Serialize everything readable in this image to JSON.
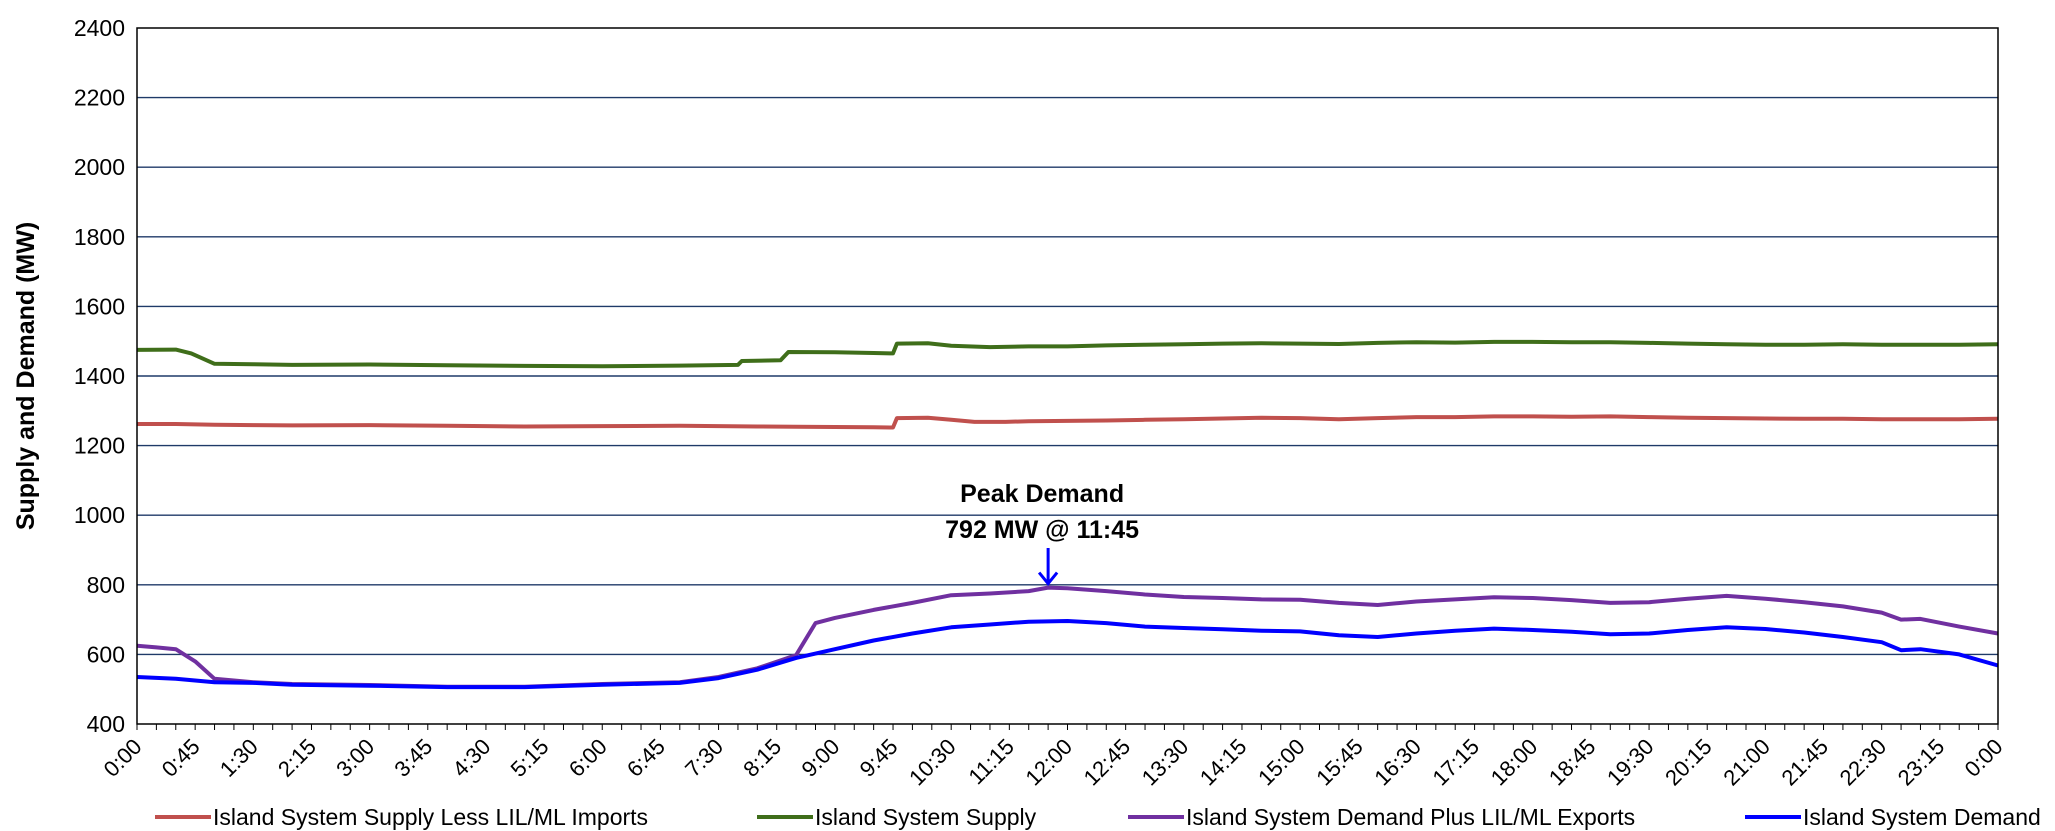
{
  "chart_data": {
    "type": "line",
    "title": "",
    "xlabel": "",
    "ylabel": "Supply and Demand (MW)",
    "ylim": [
      400,
      2400
    ],
    "yticks": [
      400,
      600,
      800,
      1000,
      1200,
      1400,
      1600,
      1800,
      2000,
      2200,
      2400
    ],
    "x_tick_labels": [
      "0:00",
      "0:45",
      "1:30",
      "2:15",
      "3:00",
      "3:45",
      "4:30",
      "5:15",
      "6:00",
      "6:45",
      "7:30",
      "8:15",
      "9:00",
      "9:45",
      "10:30",
      "11:15",
      "12:00",
      "12:45",
      "13:30",
      "14:15",
      "15:00",
      "15:45",
      "16:30",
      "17:15",
      "18:00",
      "18:45",
      "19:30",
      "20:15",
      "21:00",
      "21:45",
      "22:30",
      "23:15",
      "0:00"
    ],
    "x_unit": "hours",
    "grid": true,
    "legend_position": "bottom",
    "annotation": {
      "line1": "Peak Demand",
      "line2": "792 MW @ 11:45",
      "x": 11.75,
      "y": 792,
      "color": "#0000ff"
    },
    "series": [
      {
        "name": "Island System Supply Less LIL/ML Imports",
        "color": "#c0504d",
        "points": [
          [
            0,
            1262
          ],
          [
            0.5,
            1262
          ],
          [
            1,
            1260
          ],
          [
            1.5,
            1259
          ],
          [
            2,
            1258
          ],
          [
            3,
            1259
          ],
          [
            4,
            1257
          ],
          [
            4.5,
            1256
          ],
          [
            5,
            1255
          ],
          [
            6,
            1256
          ],
          [
            7,
            1257
          ],
          [
            8,
            1255
          ],
          [
            8.5,
            1254
          ],
          [
            9.5,
            1253
          ],
          [
            9.75,
            1252
          ],
          [
            9.8,
            1279
          ],
          [
            10.2,
            1280
          ],
          [
            10.5,
            1274
          ],
          [
            10.8,
            1268
          ],
          [
            11.2,
            1268
          ],
          [
            11.5,
            1270
          ],
          [
            12,
            1271
          ],
          [
            12.5,
            1272
          ],
          [
            13,
            1274
          ],
          [
            13.5,
            1276
          ],
          [
            14,
            1278
          ],
          [
            14.5,
            1280
          ],
          [
            15,
            1279
          ],
          [
            15.5,
            1276
          ],
          [
            16,
            1279
          ],
          [
            16.5,
            1282
          ],
          [
            17,
            1282
          ],
          [
            17.5,
            1284
          ],
          [
            18,
            1284
          ],
          [
            18.5,
            1283
          ],
          [
            19,
            1284
          ],
          [
            19.5,
            1282
          ],
          [
            20,
            1280
          ],
          [
            20.5,
            1279
          ],
          [
            21,
            1278
          ],
          [
            21.5,
            1277
          ],
          [
            22,
            1277
          ],
          [
            22.5,
            1276
          ],
          [
            23,
            1276
          ],
          [
            23.5,
            1276
          ],
          [
            24,
            1277
          ]
        ]
      },
      {
        "name": "Island System Supply",
        "color": "#3f6e1a",
        "points": [
          [
            0,
            1475
          ],
          [
            0.5,
            1476
          ],
          [
            0.7,
            1465
          ],
          [
            1,
            1435
          ],
          [
            1.5,
            1434
          ],
          [
            2,
            1432
          ],
          [
            3,
            1433
          ],
          [
            4,
            1431
          ],
          [
            5,
            1429
          ],
          [
            6,
            1428
          ],
          [
            7,
            1430
          ],
          [
            7.75,
            1432
          ],
          [
            7.8,
            1443
          ],
          [
            8.3,
            1445
          ],
          [
            8.4,
            1469
          ],
          [
            9,
            1468
          ],
          [
            9.5,
            1466
          ],
          [
            9.75,
            1465
          ],
          [
            9.8,
            1493
          ],
          [
            10.2,
            1494
          ],
          [
            10.5,
            1487
          ],
          [
            11,
            1483
          ],
          [
            11.5,
            1485
          ],
          [
            12,
            1485
          ],
          [
            12.5,
            1488
          ],
          [
            13,
            1490
          ],
          [
            13.5,
            1491
          ],
          [
            14,
            1493
          ],
          [
            14.5,
            1494
          ],
          [
            15,
            1493
          ],
          [
            15.5,
            1492
          ],
          [
            16,
            1495
          ],
          [
            16.5,
            1497
          ],
          [
            17,
            1496
          ],
          [
            17.5,
            1498
          ],
          [
            18,
            1498
          ],
          [
            18.5,
            1497
          ],
          [
            19,
            1497
          ],
          [
            19.5,
            1495
          ],
          [
            20,
            1493
          ],
          [
            20.5,
            1491
          ],
          [
            21,
            1490
          ],
          [
            21.5,
            1490
          ],
          [
            22,
            1491
          ],
          [
            22.5,
            1490
          ],
          [
            23,
            1490
          ],
          [
            23.5,
            1490
          ],
          [
            24,
            1491
          ]
        ]
      },
      {
        "name": "Island System Demand Plus LIL/ML Exports",
        "color": "#7030a0",
        "points": [
          [
            0,
            625
          ],
          [
            0.25,
            620
          ],
          [
            0.5,
            615
          ],
          [
            0.75,
            580
          ],
          [
            1,
            530
          ],
          [
            1.5,
            520
          ],
          [
            2,
            515
          ],
          [
            3,
            512
          ],
          [
            4,
            507
          ],
          [
            5,
            507
          ],
          [
            6,
            515
          ],
          [
            7,
            520
          ],
          [
            7.5,
            535
          ],
          [
            8,
            560
          ],
          [
            8.5,
            598
          ],
          [
            8.75,
            690
          ],
          [
            9,
            705
          ],
          [
            9.5,
            728
          ],
          [
            10,
            748
          ],
          [
            10.5,
            770
          ],
          [
            11,
            775
          ],
          [
            11.5,
            782
          ],
          [
            11.75,
            792
          ],
          [
            12,
            790
          ],
          [
            12.5,
            782
          ],
          [
            13,
            772
          ],
          [
            13.5,
            765
          ],
          [
            14,
            762
          ],
          [
            14.5,
            758
          ],
          [
            15,
            757
          ],
          [
            15.5,
            748
          ],
          [
            16,
            742
          ],
          [
            16.5,
            752
          ],
          [
            17,
            758
          ],
          [
            17.5,
            764
          ],
          [
            18,
            762
          ],
          [
            18.5,
            756
          ],
          [
            19,
            748
          ],
          [
            19.5,
            750
          ],
          [
            20,
            760
          ],
          [
            20.5,
            768
          ],
          [
            21,
            760
          ],
          [
            21.5,
            750
          ],
          [
            22,
            738
          ],
          [
            22.5,
            720
          ],
          [
            22.75,
            700
          ],
          [
            23,
            702
          ],
          [
            23.5,
            680
          ],
          [
            24,
            660
          ]
        ]
      },
      {
        "name": "Island System Demand",
        "color": "#0000ff",
        "points": [
          [
            0,
            535
          ],
          [
            0.5,
            530
          ],
          [
            1,
            520
          ],
          [
            1.5,
            518
          ],
          [
            2,
            513
          ],
          [
            3,
            510
          ],
          [
            4,
            506
          ],
          [
            5,
            506
          ],
          [
            6,
            513
          ],
          [
            7,
            518
          ],
          [
            7.5,
            532
          ],
          [
            8,
            556
          ],
          [
            8.5,
            590
          ],
          [
            9,
            615
          ],
          [
            9.5,
            640
          ],
          [
            10,
            660
          ],
          [
            10.5,
            678
          ],
          [
            11,
            686
          ],
          [
            11.5,
            694
          ],
          [
            12,
            696
          ],
          [
            12.5,
            690
          ],
          [
            13,
            680
          ],
          [
            13.5,
            676
          ],
          [
            14,
            672
          ],
          [
            14.5,
            668
          ],
          [
            15,
            666
          ],
          [
            15.5,
            655
          ],
          [
            16,
            650
          ],
          [
            16.5,
            660
          ],
          [
            17,
            668
          ],
          [
            17.5,
            674
          ],
          [
            18,
            670
          ],
          [
            18.5,
            665
          ],
          [
            19,
            658
          ],
          [
            19.5,
            660
          ],
          [
            20,
            670
          ],
          [
            20.5,
            678
          ],
          [
            21,
            673
          ],
          [
            21.5,
            663
          ],
          [
            22,
            650
          ],
          [
            22.5,
            635
          ],
          [
            22.75,
            612
          ],
          [
            23,
            615
          ],
          [
            23.5,
            600
          ],
          [
            24,
            568
          ]
        ]
      }
    ]
  }
}
